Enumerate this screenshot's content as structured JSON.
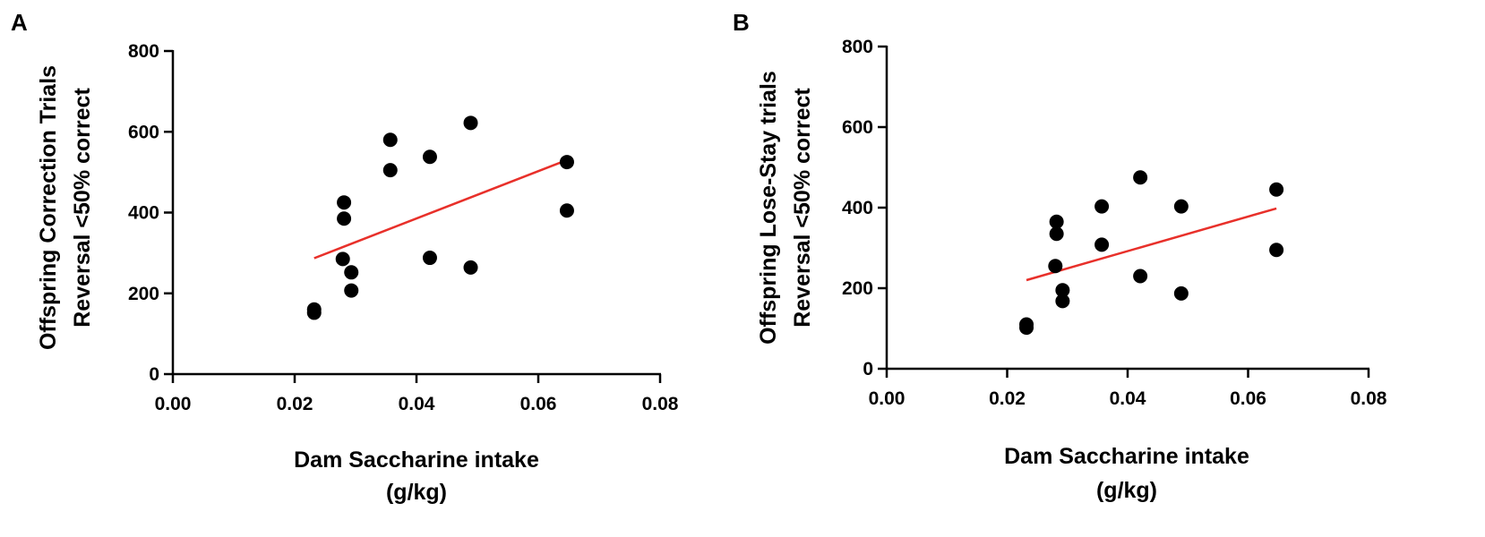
{
  "chart_data": [
    {
      "type": "scatter",
      "panel_label": "A",
      "xlabel": [
        "Dam Saccharine intake",
        "(g/kg)"
      ],
      "ylabel": [
        "Offspring Correction Trials",
        "Reversal <50% correct"
      ],
      "xlim": [
        0,
        0.08
      ],
      "ylim": [
        0,
        800
      ],
      "x_ticks": [
        "0.00",
        "0.02",
        "0.04",
        "0.06",
        "0.08"
      ],
      "y_ticks": [
        "0",
        "200",
        "400",
        "600",
        "800"
      ],
      "grid": false,
      "points": [
        {
          "x": 0.0232,
          "y": 160
        },
        {
          "x": 0.0232,
          "y": 152
        },
        {
          "x": 0.0281,
          "y": 425
        },
        {
          "x": 0.0281,
          "y": 385
        },
        {
          "x": 0.0279,
          "y": 285
        },
        {
          "x": 0.0293,
          "y": 252
        },
        {
          "x": 0.0293,
          "y": 207
        },
        {
          "x": 0.0357,
          "y": 580
        },
        {
          "x": 0.0357,
          "y": 505
        },
        {
          "x": 0.0422,
          "y": 538
        },
        {
          "x": 0.0422,
          "y": 288
        },
        {
          "x": 0.0489,
          "y": 622
        },
        {
          "x": 0.0489,
          "y": 264
        },
        {
          "x": 0.0647,
          "y": 525
        },
        {
          "x": 0.0647,
          "y": 405
        }
      ],
      "regression": {
        "x": [
          0.0232,
          0.0647
        ],
        "y": [
          287,
          530
        ],
        "color": "#e8302a"
      },
      "point_color": "#000000"
    },
    {
      "type": "scatter",
      "panel_label": "B",
      "xlabel": [
        "Dam Saccharine intake",
        "(g/kg)"
      ],
      "ylabel": [
        "Offspring Lose-Stay trials",
        "Reversal <50% correct"
      ],
      "xlim": [
        0,
        0.08
      ],
      "ylim": [
        0,
        800
      ],
      "x_ticks": [
        "0.00",
        "0.02",
        "0.04",
        "0.06",
        "0.08"
      ],
      "y_ticks": [
        "0",
        "200",
        "400",
        "600",
        "800"
      ],
      "grid": false,
      "points": [
        {
          "x": 0.0232,
          "y": 110
        },
        {
          "x": 0.0232,
          "y": 102
        },
        {
          "x": 0.0282,
          "y": 365
        },
        {
          "x": 0.0282,
          "y": 335
        },
        {
          "x": 0.028,
          "y": 255
        },
        {
          "x": 0.0292,
          "y": 195
        },
        {
          "x": 0.0292,
          "y": 168
        },
        {
          "x": 0.0357,
          "y": 403
        },
        {
          "x": 0.0357,
          "y": 308
        },
        {
          "x": 0.0421,
          "y": 475
        },
        {
          "x": 0.0421,
          "y": 230
        },
        {
          "x": 0.0489,
          "y": 403
        },
        {
          "x": 0.0489,
          "y": 187
        },
        {
          "x": 0.0647,
          "y": 445
        },
        {
          "x": 0.0647,
          "y": 295
        }
      ],
      "regression": {
        "x": [
          0.0232,
          0.0647
        ],
        "y": [
          220,
          398
        ],
        "color": "#e8302a"
      },
      "point_color": "#000000"
    }
  ]
}
